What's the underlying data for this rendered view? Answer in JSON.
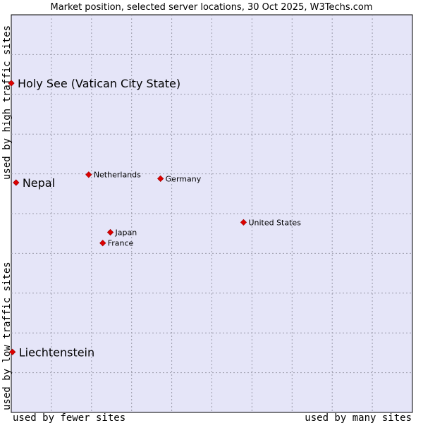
{
  "chart_data": {
    "type": "scatter",
    "title": "Market position, selected server locations, 30 Oct 2025, W3Techs.com",
    "xlabel_left": "used by fewer sites",
    "xlabel_right": "used by many sites",
    "ylabel_bottom": "used by low traffic sites",
    "ylabel_top": "used by high traffic sites",
    "xlim": [
      0,
      100
    ],
    "ylim": [
      0,
      100
    ],
    "grid": true,
    "colors": {
      "plot_bg": "#e5e5f8",
      "point": "#dd0000",
      "grid": "#9a9aaa",
      "border": "#000000"
    },
    "points": [
      {
        "label": "Holy See (Vatican City State)",
        "x": 0.0,
        "y": 82.8,
        "emphasis": true
      },
      {
        "label": "Nepal",
        "x": 1.2,
        "y": 57.8,
        "emphasis": true
      },
      {
        "label": "Liechtenstein",
        "x": 0.3,
        "y": 15.2,
        "emphasis": true
      },
      {
        "label": "Netherlands",
        "x": 19.3,
        "y": 59.8,
        "emphasis": false
      },
      {
        "label": "Germany",
        "x": 37.2,
        "y": 58.8,
        "emphasis": false
      },
      {
        "label": "United States",
        "x": 57.9,
        "y": 47.8,
        "emphasis": false
      },
      {
        "label": "Japan",
        "x": 24.7,
        "y": 45.3,
        "emphasis": false
      },
      {
        "label": "France",
        "x": 22.8,
        "y": 42.6,
        "emphasis": false
      }
    ]
  }
}
